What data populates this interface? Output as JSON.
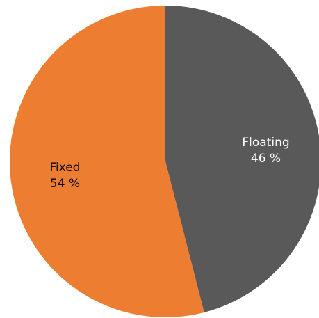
{
  "chart_data": {
    "type": "pie",
    "title": "",
    "start_angle_deg": 0,
    "direction": "clockwise",
    "slices": [
      {
        "label": "Floating",
        "value": 46,
        "value_label": "46 %",
        "color": "#595959",
        "label_color": "#ffffff"
      },
      {
        "label": "Fixed",
        "value": 54,
        "value_label": "54 %",
        "color": "#ed7d31",
        "label_color": "#000000"
      }
    ]
  }
}
